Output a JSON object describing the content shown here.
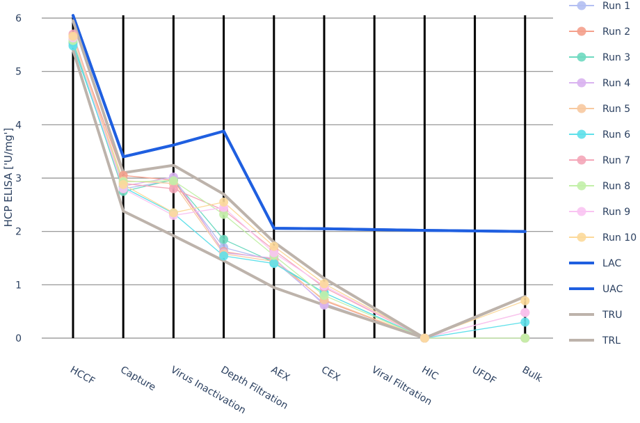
{
  "chart_data": {
    "type": "line",
    "title": "",
    "xlabel": "",
    "ylabel": "HCP ELISA ['U/mg']",
    "ylim": [
      0,
      6
    ],
    "yticks": [
      0,
      1,
      2,
      3,
      4,
      5,
      6
    ],
    "grid": true,
    "legend_position": "right",
    "categories": [
      "HCCF",
      "Capture",
      "Virus Inactivation",
      "Depth Filtration",
      "AEX",
      "CEX",
      "Viral Filtration",
      "HIC",
      "UFDF",
      "Bulk"
    ],
    "series": [
      {
        "name": "Run 1",
        "color": "#b3bff2",
        "values": [
          5.52,
          2.8,
          2.96,
          1.7,
          1.45,
          0.65,
          null,
          0.0,
          null,
          0.0
        ]
      },
      {
        "name": "Run 2",
        "color": "#f4a08c",
        "values": [
          5.65,
          3.05,
          2.96,
          1.62,
          1.48,
          0.7,
          null,
          0.0,
          null,
          0.0
        ]
      },
      {
        "name": "Run 3",
        "color": "#6ed9c0",
        "values": [
          5.55,
          2.75,
          2.97,
          1.85,
          1.42,
          0.85,
          null,
          0.0,
          null,
          0.0
        ]
      },
      {
        "name": "Run 4",
        "color": "#d9b3f0",
        "values": [
          5.6,
          2.85,
          3.02,
          1.6,
          1.5,
          0.62,
          null,
          0.0,
          null,
          0.0
        ]
      },
      {
        "name": "Run 5",
        "color": "#f7c9a0",
        "values": [
          5.62,
          2.95,
          2.9,
          1.58,
          1.44,
          0.72,
          null,
          0.0,
          null,
          0.0
        ]
      },
      {
        "name": "Run 6",
        "color": "#5fe0ea",
        "values": [
          5.48,
          2.83,
          2.34,
          1.54,
          1.4,
          0.85,
          null,
          0.0,
          null,
          0.3
        ]
      },
      {
        "name": "Run 7",
        "color": "#f4a6b8",
        "values": [
          5.7,
          2.9,
          2.8,
          2.4,
          1.65,
          0.95,
          null,
          0.0,
          null,
          0.48
        ]
      },
      {
        "name": "Run 8",
        "color": "#c2f0a8",
        "values": [
          5.58,
          2.93,
          2.95,
          2.32,
          1.55,
          0.8,
          null,
          0.0,
          null,
          0.0
        ]
      },
      {
        "name": "Run 9",
        "color": "#f9c4f2",
        "values": [
          5.63,
          2.8,
          2.3,
          2.45,
          1.6,
          0.98,
          null,
          0.0,
          null,
          0.48
        ]
      },
      {
        "name": "Run 10",
        "color": "#fcd99a",
        "values": [
          5.66,
          2.88,
          2.35,
          2.55,
          1.72,
          1.02,
          null,
          0.0,
          null,
          0.7
        ]
      },
      {
        "name": "LAC",
        "color": "#1f5fe0",
        "values": [
          6.05,
          3.4,
          3.62,
          3.88,
          2.06,
          2.05,
          null,
          2.02,
          null,
          2.0
        ]
      },
      {
        "name": "UAC",
        "color": "#1f5fe0",
        "values": [
          6.05,
          3.4,
          3.62,
          3.88,
          2.06,
          2.05,
          null,
          2.02,
          null,
          2.0
        ]
      },
      {
        "name": "TRU",
        "color": "#bdb3ab",
        "values": [
          5.95,
          3.1,
          3.24,
          2.7,
          1.8,
          1.12,
          null,
          0.0,
          null,
          0.78
        ]
      },
      {
        "name": "TRL",
        "color": "#bdb3ab",
        "values": [
          5.4,
          2.38,
          1.92,
          1.45,
          0.95,
          0.62,
          null,
          0.0,
          null,
          0.78
        ]
      }
    ]
  },
  "legend": {
    "items": [
      "Run 1",
      "Run 2",
      "Run 3",
      "Run 4",
      "Run 5",
      "Run 6",
      "Run 7",
      "Run 8",
      "Run 9",
      "Run 10",
      "LAC",
      "UAC",
      "TRU",
      "TRL"
    ]
  }
}
